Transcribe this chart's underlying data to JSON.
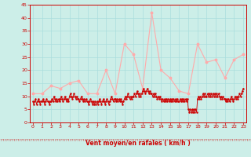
{
  "xlabel": "Vent moyen/en rafales ( km/h )",
  "bg_color": "#cceee8",
  "grid_color": "#aadddd",
  "axis_color": "#cc0000",
  "xlabel_color": "#cc0000",
  "ylim": [
    0,
    45
  ],
  "yticks": [
    0,
    5,
    10,
    15,
    20,
    25,
    30,
    35,
    40,
    45
  ],
  "xticks": [
    0,
    1,
    2,
    3,
    4,
    5,
    6,
    7,
    8,
    9,
    10,
    11,
    12,
    13,
    14,
    15,
    16,
    17,
    18,
    19,
    20,
    21,
    22,
    23
  ],
  "wind_gust": [
    11,
    11,
    14,
    13,
    15,
    16,
    11,
    11,
    20,
    11,
    30,
    26,
    13,
    42,
    20,
    17,
    12,
    11,
    30,
    23,
    24,
    17,
    24,
    26
  ],
  "wind_avg_x": [
    0,
    0.1,
    0.2,
    0.3,
    0.4,
    0.5,
    0.6,
    0.7,
    0.8,
    0.9,
    1,
    1.1,
    1.2,
    1.3,
    1.4,
    1.5,
    1.6,
    1.7,
    1.8,
    1.9,
    2,
    2.1,
    2.2,
    2.3,
    2.4,
    2.5,
    2.6,
    2.7,
    2.8,
    2.9,
    3,
    3.1,
    3.2,
    3.3,
    3.4,
    3.5,
    3.6,
    3.7,
    3.8,
    3.9,
    4,
    4.1,
    4.2,
    4.3,
    4.4,
    4.5,
    4.6,
    4.7,
    4.8,
    4.9,
    5,
    5.1,
    5.2,
    5.3,
    5.4,
    5.5,
    5.6,
    5.7,
    5.8,
    5.9,
    6,
    6.1,
    6.2,
    6.3,
    6.4,
    6.5,
    6.6,
    6.7,
    6.8,
    6.9,
    7,
    7.1,
    7.2,
    7.3,
    7.4,
    7.5,
    7.6,
    7.7,
    7.8,
    7.9,
    8,
    8.1,
    8.2,
    8.3,
    8.4,
    8.5,
    8.6,
    8.7,
    8.8,
    8.9,
    9,
    9.1,
    9.2,
    9.3,
    9.4,
    9.5,
    9.6,
    9.7,
    9.8,
    9.9,
    10,
    10.1,
    10.2,
    10.3,
    10.4,
    10.5,
    10.6,
    10.7,
    10.8,
    10.9,
    11,
    11.1,
    11.2,
    11.3,
    11.4,
    11.5,
    11.6,
    11.7,
    11.8,
    11.9,
    12,
    12.1,
    12.2,
    12.3,
    12.4,
    12.5,
    12.6,
    12.7,
    12.8,
    12.9,
    13,
    13.1,
    13.2,
    13.3,
    13.4,
    13.5,
    13.6,
    13.7,
    13.8,
    13.9,
    14,
    14.1,
    14.2,
    14.3,
    14.4,
    14.5,
    14.6,
    14.7,
    14.8,
    14.9,
    15,
    15.1,
    15.2,
    15.3,
    15.4,
    15.5,
    15.6,
    15.7,
    15.8,
    15.9,
    16,
    16.1,
    16.2,
    16.3,
    16.4,
    16.5,
    16.6,
    16.7,
    16.8,
    16.9,
    17,
    17.1,
    17.2,
    17.3,
    17.4,
    17.5,
    17.6,
    17.7,
    17.8,
    17.9,
    18,
    18.1,
    18.2,
    18.3,
    18.4,
    18.5,
    18.6,
    18.7,
    18.8,
    18.9,
    19,
    19.1,
    19.2,
    19.3,
    19.4,
    19.5,
    19.6,
    19.7,
    19.8,
    19.9,
    20,
    20.1,
    20.2,
    20.3,
    20.4,
    20.5,
    20.6,
    20.7,
    20.8,
    20.9,
    21,
    21.1,
    21.2,
    21.3,
    21.4,
    21.5,
    21.6,
    21.7,
    21.8,
    21.9,
    22,
    22.1,
    22.2,
    22.3,
    22.4,
    22.5,
    22.6,
    22.7,
    22.8,
    22.9,
    23
  ],
  "wind_avg_y": [
    8,
    7,
    8,
    9,
    7,
    8,
    9,
    8,
    7,
    8,
    8,
    9,
    8,
    7,
    8,
    9,
    8,
    8,
    7,
    8,
    8,
    9,
    8,
    10,
    9,
    8,
    9,
    8,
    9,
    8,
    9,
    10,
    9,
    8,
    9,
    10,
    9,
    8,
    9,
    8,
    10,
    11,
    10,
    9,
    10,
    11,
    10,
    9,
    10,
    9,
    9,
    8,
    9,
    10,
    9,
    8,
    9,
    8,
    9,
    8,
    8,
    7,
    8,
    9,
    8,
    7,
    8,
    7,
    8,
    7,
    8,
    7,
    8,
    9,
    8,
    7,
    8,
    9,
    8,
    7,
    8,
    9,
    8,
    7,
    8,
    9,
    10,
    9,
    8,
    9,
    9,
    8,
    9,
    8,
    9,
    8,
    9,
    8,
    7,
    8,
    9,
    10,
    9,
    10,
    11,
    10,
    9,
    10,
    9,
    10,
    10,
    11,
    10,
    11,
    12,
    11,
    10,
    11,
    10,
    11,
    12,
    13,
    12,
    11,
    12,
    13,
    12,
    11,
    12,
    11,
    11,
    10,
    11,
    10,
    11,
    10,
    9,
    10,
    9,
    10,
    9,
    8,
    9,
    8,
    9,
    8,
    9,
    8,
    9,
    8,
    9,
    8,
    9,
    8,
    9,
    8,
    9,
    8,
    9,
    8,
    8,
    9,
    8,
    9,
    8,
    9,
    8,
    9,
    8,
    9,
    5,
    4,
    5,
    4,
    5,
    4,
    5,
    4,
    5,
    4,
    9,
    10,
    9,
    10,
    9,
    10,
    11,
    10,
    11,
    10,
    10,
    11,
    10,
    11,
    10,
    11,
    10,
    11,
    10,
    11,
    10,
    11,
    10,
    11,
    10,
    9,
    10,
    9,
    10,
    9,
    9,
    8,
    9,
    8,
    9,
    8,
    9,
    10,
    9,
    8,
    9,
    10,
    9,
    10,
    9,
    10,
    11,
    10,
    11,
    12,
    13
  ]
}
